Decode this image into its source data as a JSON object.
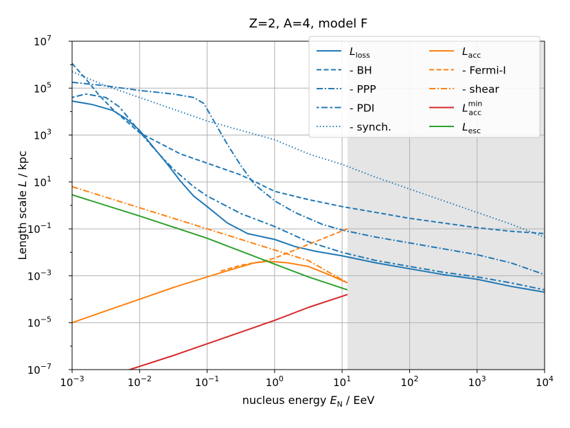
{
  "chart_data": {
    "type": "line",
    "title": "Z=2, A=4, model F",
    "xlabel": "nucleus energy E_N / EeV",
    "xlabel_parts": {
      "prefix": "nucleus energy ",
      "var": "E",
      "sub": "N",
      "suffix": " / EeV"
    },
    "ylabel": "Length scale L / kpc",
    "ylabel_parts": {
      "prefix": "Length scale ",
      "var": "L",
      "suffix": " / kpc"
    },
    "xscale": "log",
    "yscale": "log",
    "xlim_log10": [
      -3,
      4
    ],
    "ylim_log10": [
      -7,
      7
    ],
    "x_ticks": [
      {
        "base": "10",
        "exp": "−3"
      },
      {
        "base": "10",
        "exp": "−2"
      },
      {
        "base": "10",
        "exp": "−1"
      },
      {
        "base": "10",
        "exp": "0"
      },
      {
        "base": "10",
        "exp": "1"
      },
      {
        "base": "10",
        "exp": "2"
      },
      {
        "base": "10",
        "exp": "3"
      },
      {
        "base": "10",
        "exp": "4"
      }
    ],
    "y_ticks": [
      {
        "base": "10",
        "exp": "−7"
      },
      {
        "base": "10",
        "exp": "−5"
      },
      {
        "base": "10",
        "exp": "−3"
      },
      {
        "base": "10",
        "exp": "−1"
      },
      {
        "base": "10",
        "exp": "1"
      },
      {
        "base": "10",
        "exp": "3"
      },
      {
        "base": "10",
        "exp": "5"
      },
      {
        "base": "10",
        "exp": "7"
      }
    ],
    "shaded_region_log10_x": [
      1.08,
      4
    ],
    "grid": true,
    "legend_position": "top-right",
    "legend_columns": 2,
    "colors": {
      "blue": "#1f77b4",
      "orange": "#ff7f0e",
      "red": "#d62728",
      "green": "#2ca02c",
      "shade": "#e5e5e5"
    },
    "series": [
      {
        "name": "L_loss",
        "legend": {
          "var": "L",
          "sub": "loss"
        },
        "color": "#1f77b4",
        "dash": "solid",
        "points_log10": [
          [
            -3,
            4.45
          ],
          [
            -2.7,
            4.3
          ],
          [
            -2.4,
            4.05
          ],
          [
            -2.2,
            3.7
          ],
          [
            -2,
            3.2
          ],
          [
            -1.8,
            2.5
          ],
          [
            -1.6,
            1.8
          ],
          [
            -1.4,
            1.05
          ],
          [
            -1.2,
            0.4
          ],
          [
            -1,
            -0.05
          ],
          [
            -0.7,
            -0.75
          ],
          [
            -0.4,
            -1.2
          ],
          [
            0,
            -1.45
          ],
          [
            0.3,
            -1.75
          ],
          [
            0.6,
            -1.95
          ],
          [
            1,
            -2.15
          ],
          [
            1.5,
            -2.45
          ],
          [
            2,
            -2.7
          ],
          [
            2.5,
            -2.95
          ],
          [
            3,
            -3.15
          ],
          [
            3.5,
            -3.45
          ],
          [
            4,
            -3.7
          ]
        ]
      },
      {
        "name": "- BH",
        "legend": {
          "var": "",
          "sub": "",
          "text": "  - BH"
        },
        "color": "#1f77b4",
        "dash": "dashed",
        "points_log10": [
          [
            -3,
            6.05
          ],
          [
            -2.8,
            5.4
          ],
          [
            -2.6,
            4.7
          ],
          [
            -2.4,
            4.1
          ],
          [
            -2.2,
            3.6
          ],
          [
            -2,
            3.1
          ],
          [
            -1.7,
            2.65
          ],
          [
            -1.4,
            2.2
          ],
          [
            -1,
            1.8
          ],
          [
            -0.5,
            1.3
          ],
          [
            0,
            0.6
          ],
          [
            0.5,
            0.25
          ],
          [
            1,
            -0.05
          ],
          [
            1.5,
            -0.3
          ],
          [
            2,
            -0.55
          ],
          [
            2.5,
            -0.75
          ],
          [
            3,
            -0.95
          ],
          [
            3.5,
            -1.1
          ],
          [
            4,
            -1.2
          ]
        ]
      },
      {
        "name": "- PPP",
        "legend": {
          "var": "",
          "sub": "",
          "text": "  - PPP"
        },
        "color": "#1f77b4",
        "dash": "dashdot",
        "points_log10": [
          [
            -3,
            5.25
          ],
          [
            -2.5,
            5.1
          ],
          [
            -2,
            4.9
          ],
          [
            -1.5,
            4.75
          ],
          [
            -1.2,
            4.6
          ],
          [
            -1.05,
            4.35
          ],
          [
            -0.9,
            3.6
          ],
          [
            -0.7,
            2.6
          ],
          [
            -0.5,
            1.7
          ],
          [
            -0.3,
            0.9
          ],
          [
            0,
            0.2
          ],
          [
            0.3,
            -0.3
          ],
          [
            0.7,
            -0.8
          ],
          [
            1,
            -1.05
          ],
          [
            1.5,
            -1.35
          ],
          [
            2,
            -1.6
          ],
          [
            2.5,
            -1.85
          ],
          [
            3,
            -2.1
          ],
          [
            3.5,
            -2.45
          ],
          [
            4,
            -2.95
          ]
        ]
      },
      {
        "name": "- PDI",
        "legend": {
          "var": "",
          "sub": "",
          "text": "  - PDI"
        },
        "color": "#1f77b4",
        "dash": "dotdash",
        "points_log10": [
          [
            -3,
            4.6
          ],
          [
            -2.8,
            4.75
          ],
          [
            -2.5,
            4.6
          ],
          [
            -2.3,
            4.2
          ],
          [
            -2.1,
            3.5
          ],
          [
            -1.9,
            2.8
          ],
          [
            -1.7,
            2.15
          ],
          [
            -1.5,
            1.55
          ],
          [
            -1.2,
            0.8
          ],
          [
            -1,
            0.4
          ],
          [
            -0.5,
            -0.35
          ],
          [
            0,
            -0.9
          ],
          [
            0.5,
            -1.55
          ],
          [
            1,
            -2.0
          ],
          [
            1.5,
            -2.35
          ],
          [
            2,
            -2.6
          ],
          [
            2.5,
            -2.85
          ],
          [
            3,
            -3.05
          ],
          [
            3.5,
            -3.3
          ],
          [
            4,
            -3.6
          ]
        ]
      },
      {
        "name": "- synch.",
        "legend": {
          "var": "",
          "sub": "",
          "text": "  - synch."
        },
        "color": "#1f77b4",
        "dash": "dotted",
        "points_log10": [
          [
            -3,
            5.7
          ],
          [
            -2.5,
            5.1
          ],
          [
            -2,
            4.6
          ],
          [
            -1.5,
            4.1
          ],
          [
            -1,
            3.6
          ],
          [
            -0.5,
            3.2
          ],
          [
            0,
            2.8
          ],
          [
            0.5,
            2.2
          ],
          [
            1,
            1.75
          ],
          [
            1.5,
            1.2
          ],
          [
            2,
            0.7
          ],
          [
            2.5,
            0.2
          ],
          [
            3,
            -0.3
          ],
          [
            3.5,
            -0.8
          ],
          [
            4,
            -1.35
          ]
        ]
      },
      {
        "name": "L_acc",
        "legend": {
          "var": "L",
          "sub": "acc"
        },
        "color": "#ff7f0e",
        "dash": "solid",
        "points_log10": [
          [
            -3,
            -5
          ],
          [
            -2.5,
            -4.5
          ],
          [
            -2,
            -4.0
          ],
          [
            -1.5,
            -3.5
          ],
          [
            -1,
            -3.05
          ],
          [
            -0.6,
            -2.7
          ],
          [
            -0.3,
            -2.45
          ],
          [
            -0.1,
            -2.38
          ],
          [
            0.2,
            -2.45
          ],
          [
            0.5,
            -2.6
          ],
          [
            0.8,
            -2.95
          ],
          [
            1.08,
            -3.3
          ]
        ]
      },
      {
        "name": "- Fermi-I",
        "legend": {
          "var": "",
          "sub": "",
          "text": "  - Fermi-I"
        },
        "color": "#ff7f0e",
        "dash": "dashed",
        "points_log10": [
          [
            -0.8,
            -2.8
          ],
          [
            -0.5,
            -2.55
          ],
          [
            -0.2,
            -2.4
          ],
          [
            0,
            -2.25
          ],
          [
            0.3,
            -1.9
          ],
          [
            0.6,
            -1.55
          ],
          [
            0.9,
            -1.2
          ],
          [
            1.08,
            -1.0
          ]
        ]
      },
      {
        "name": "- shear",
        "legend": {
          "var": "",
          "sub": "",
          "text": "  - shear"
        },
        "color": "#ff7f0e",
        "dash": "dashdot",
        "points_log10": [
          [
            -3,
            0.8
          ],
          [
            -2,
            -0.1
          ],
          [
            -1,
            -1.0
          ],
          [
            0,
            -1.9
          ],
          [
            0.5,
            -2.35
          ],
          [
            1.08,
            -3.3
          ]
        ]
      },
      {
        "name": "L_acc^min",
        "legend": {
          "var": "L",
          "sub": "acc",
          "sup": "min"
        },
        "color": "#d62728",
        "dash": "solid",
        "points_log10": [
          [
            -2.2,
            -7.05
          ],
          [
            -1.5,
            -6.4
          ],
          [
            -1,
            -5.9
          ],
          [
            -0.5,
            -5.4
          ],
          [
            0,
            -4.9
          ],
          [
            0.5,
            -4.35
          ],
          [
            1.08,
            -3.8
          ]
        ]
      },
      {
        "name": "L_esc",
        "legend": {
          "var": "L",
          "sub": "esc"
        },
        "color": "#2ca02c",
        "dash": "solid",
        "points_log10": [
          [
            -3,
            0.45
          ],
          [
            -2,
            -0.45
          ],
          [
            -1,
            -1.4
          ],
          [
            0,
            -2.5
          ],
          [
            0.5,
            -3.05
          ],
          [
            1.08,
            -3.6
          ]
        ]
      }
    ]
  }
}
